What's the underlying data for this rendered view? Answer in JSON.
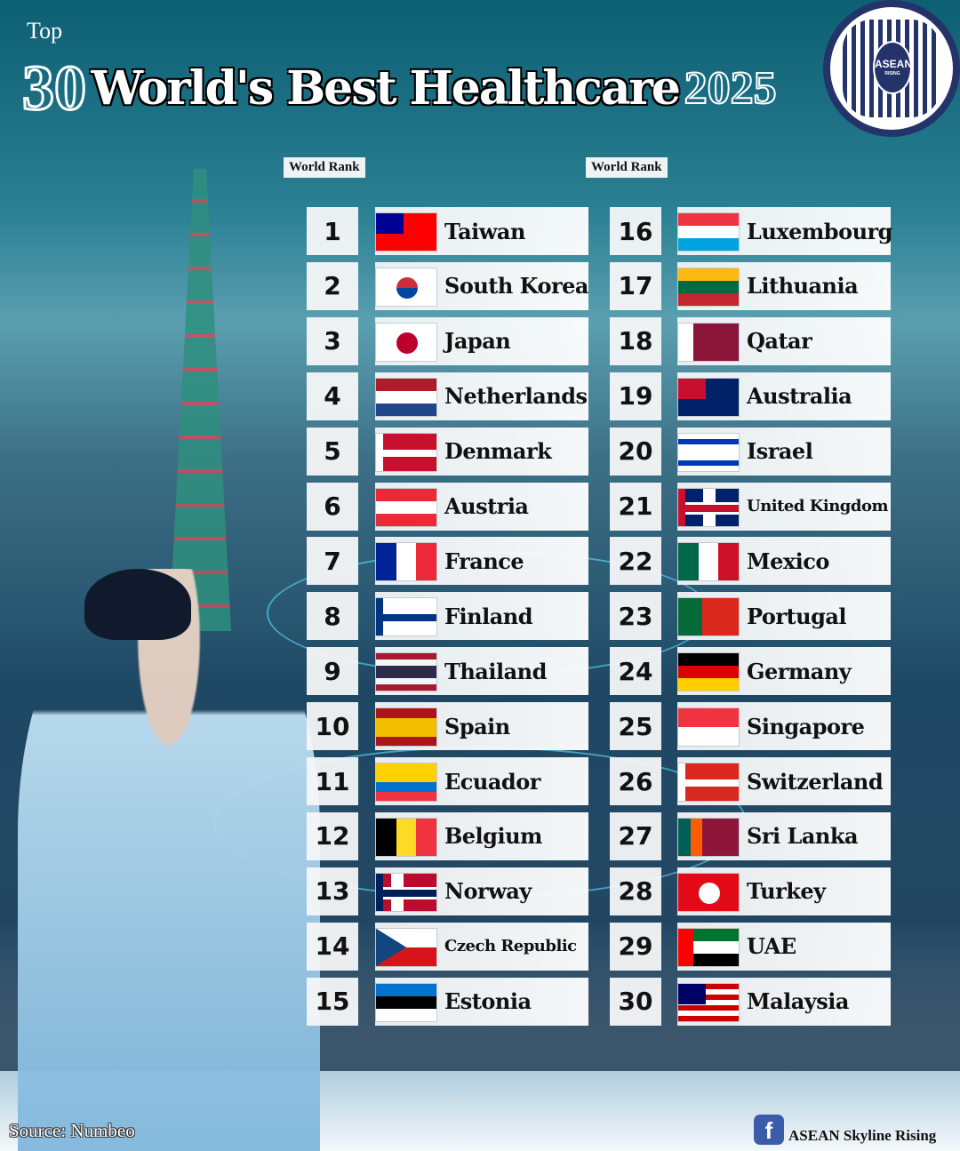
{
  "header": {
    "top": "Top",
    "number": "30",
    "title": "World's Best Healthcare",
    "year": "2025",
    "logo_text": "ASEAN",
    "logo_sub": "RISING"
  },
  "columns": [
    {
      "header": "World Rank"
    },
    {
      "header": "World Rank"
    }
  ],
  "rankings": [
    {
      "rank": "1",
      "country": "Taiwan",
      "flag": {
        "dir": "h",
        "stripes": [
          "#FE0000"
        ],
        "canton": "#000095"
      }
    },
    {
      "rank": "2",
      "country": "South Korea",
      "flag": {
        "dir": "h",
        "stripes": [
          "#FFFFFF"
        ],
        "circle": "#CD2E3A",
        "circle2": "#0047A0"
      }
    },
    {
      "rank": "3",
      "country": "Japan",
      "flag": {
        "dir": "h",
        "stripes": [
          "#FFFFFF"
        ],
        "circle": "#BC002D"
      }
    },
    {
      "rank": "4",
      "country": "Netherlands",
      "flag": {
        "dir": "h",
        "stripes": [
          "#AE1C28",
          "#FFFFFF",
          "#21468B"
        ]
      }
    },
    {
      "rank": "5",
      "country": "Denmark",
      "flag": {
        "dir": "h",
        "stripes": [
          "#C8102E"
        ],
        "cross": "#FFFFFF"
      }
    },
    {
      "rank": "6",
      "country": "Austria",
      "flag": {
        "dir": "h",
        "stripes": [
          "#ED2939",
          "#FFFFFF",
          "#ED2939"
        ]
      }
    },
    {
      "rank": "7",
      "country": "France",
      "flag": {
        "dir": "v",
        "stripes": [
          "#002395",
          "#FFFFFF",
          "#ED2939"
        ]
      }
    },
    {
      "rank": "8",
      "country": "Finland",
      "flag": {
        "dir": "h",
        "stripes": [
          "#FFFFFF"
        ],
        "cross": "#003580"
      }
    },
    {
      "rank": "9",
      "country": "Thailand",
      "flag": {
        "dir": "h",
        "stripes": [
          "#A51931",
          "#F4F5F8",
          "#2D2A4A",
          "#2D2A4A",
          "#F4F5F8",
          "#A51931"
        ]
      }
    },
    {
      "rank": "10",
      "country": "Spain",
      "flag": {
        "dir": "h",
        "stripes": [
          "#AA151B",
          "#F1BF00",
          "#F1BF00",
          "#AA151B"
        ]
      }
    },
    {
      "rank": "11",
      "country": "Ecuador",
      "flag": {
        "dir": "h",
        "stripes": [
          "#FFD100",
          "#FFD100",
          "#0072CE",
          "#EF3340"
        ]
      }
    },
    {
      "rank": "12",
      "country": "Belgium",
      "flag": {
        "dir": "v",
        "stripes": [
          "#000000",
          "#FDDA24",
          "#EF3340"
        ]
      }
    },
    {
      "rank": "13",
      "country": "Norway",
      "flag": {
        "dir": "h",
        "stripes": [
          "#BA0C2F"
        ],
        "cross": "#00205B",
        "crossBorder": "#FFFFFF"
      }
    },
    {
      "rank": "14",
      "country": "Czech Republic",
      "flag": {
        "dir": "h",
        "stripes": [
          "#FFFFFF",
          "#D7141A"
        ],
        "triangle": "#11457E"
      }
    },
    {
      "rank": "15",
      "country": "Estonia",
      "flag": {
        "dir": "h",
        "stripes": [
          "#0072CE",
          "#000000",
          "#FFFFFF"
        ]
      }
    },
    {
      "rank": "16",
      "country": "Luxembourg",
      "flag": {
        "dir": "h",
        "stripes": [
          "#EF3340",
          "#FFFFFF",
          "#00A3E0"
        ]
      }
    },
    {
      "rank": "17",
      "country": "Lithuania",
      "flag": {
        "dir": "h",
        "stripes": [
          "#FDB913",
          "#006A44",
          "#C1272D"
        ]
      }
    },
    {
      "rank": "18",
      "country": "Qatar",
      "flag": {
        "dir": "v",
        "stripes": [
          "#FFFFFF",
          "#8A1538",
          "#8A1538",
          "#8A1538"
        ]
      }
    },
    {
      "rank": "19",
      "country": "Australia",
      "flag": {
        "dir": "h",
        "stripes": [
          "#012169"
        ],
        "canton": "#C8102E"
      }
    },
    {
      "rank": "20",
      "country": "Israel",
      "flag": {
        "dir": "h",
        "stripes": [
          "#FFFFFF",
          "#0038B8",
          "#FFFFFF",
          "#FFFFFF",
          "#FFFFFF",
          "#0038B8",
          "#FFFFFF"
        ]
      }
    },
    {
      "rank": "21",
      "country": "United Kingdom",
      "flag": {
        "dir": "h",
        "stripes": [
          "#012169"
        ],
        "cross": "#C8102E",
        "crossBorder": "#FFFFFF",
        "center": true
      }
    },
    {
      "rank": "22",
      "country": "Mexico",
      "flag": {
        "dir": "v",
        "stripes": [
          "#006847",
          "#FFFFFF",
          "#CE1126"
        ]
      }
    },
    {
      "rank": "23",
      "country": "Portugal",
      "flag": {
        "dir": "v",
        "stripes": [
          "#046A38",
          "#046A38",
          "#DA291C",
          "#DA291C",
          "#DA291C"
        ]
      }
    },
    {
      "rank": "24",
      "country": "Germany",
      "flag": {
        "dir": "h",
        "stripes": [
          "#000000",
          "#DD0000",
          "#FFCE00"
        ]
      }
    },
    {
      "rank": "25",
      "country": "Singapore",
      "flag": {
        "dir": "h",
        "stripes": [
          "#EF3340",
          "#FFFFFF"
        ]
      }
    },
    {
      "rank": "26",
      "country": "Switzerland",
      "flag": {
        "dir": "h",
        "stripes": [
          "#DA291C"
        ],
        "cross": "#FFFFFF",
        "center": true
      }
    },
    {
      "rank": "27",
      "country": "Sri Lanka",
      "flag": {
        "dir": "v",
        "stripes": [
          "#005F56",
          "#FF5B00",
          "#8D153A",
          "#8D153A",
          "#8D153A"
        ]
      }
    },
    {
      "rank": "28",
      "country": "Turkey",
      "flag": {
        "dir": "h",
        "stripes": [
          "#E30A17"
        ],
        "circle": "#FFFFFF"
      }
    },
    {
      "rank": "29",
      "country": "UAE",
      "flag": {
        "dir": "h",
        "stripes": [
          "#00732F",
          "#FFFFFF",
          "#000000"
        ],
        "hoist": "#FF0000"
      }
    },
    {
      "rank": "30",
      "country": "Malaysia",
      "flag": {
        "dir": "h",
        "stripes": [
          "#CC0001",
          "#FFFFFF",
          "#CC0001",
          "#FFFFFF",
          "#CC0001",
          "#FFFFFF",
          "#CC0001"
        ],
        "canton": "#010066"
      }
    }
  ],
  "footer": {
    "source": "Source: Numbeo",
    "facebook_icon": "f",
    "brand": "ASEAN Skyline Rising"
  }
}
